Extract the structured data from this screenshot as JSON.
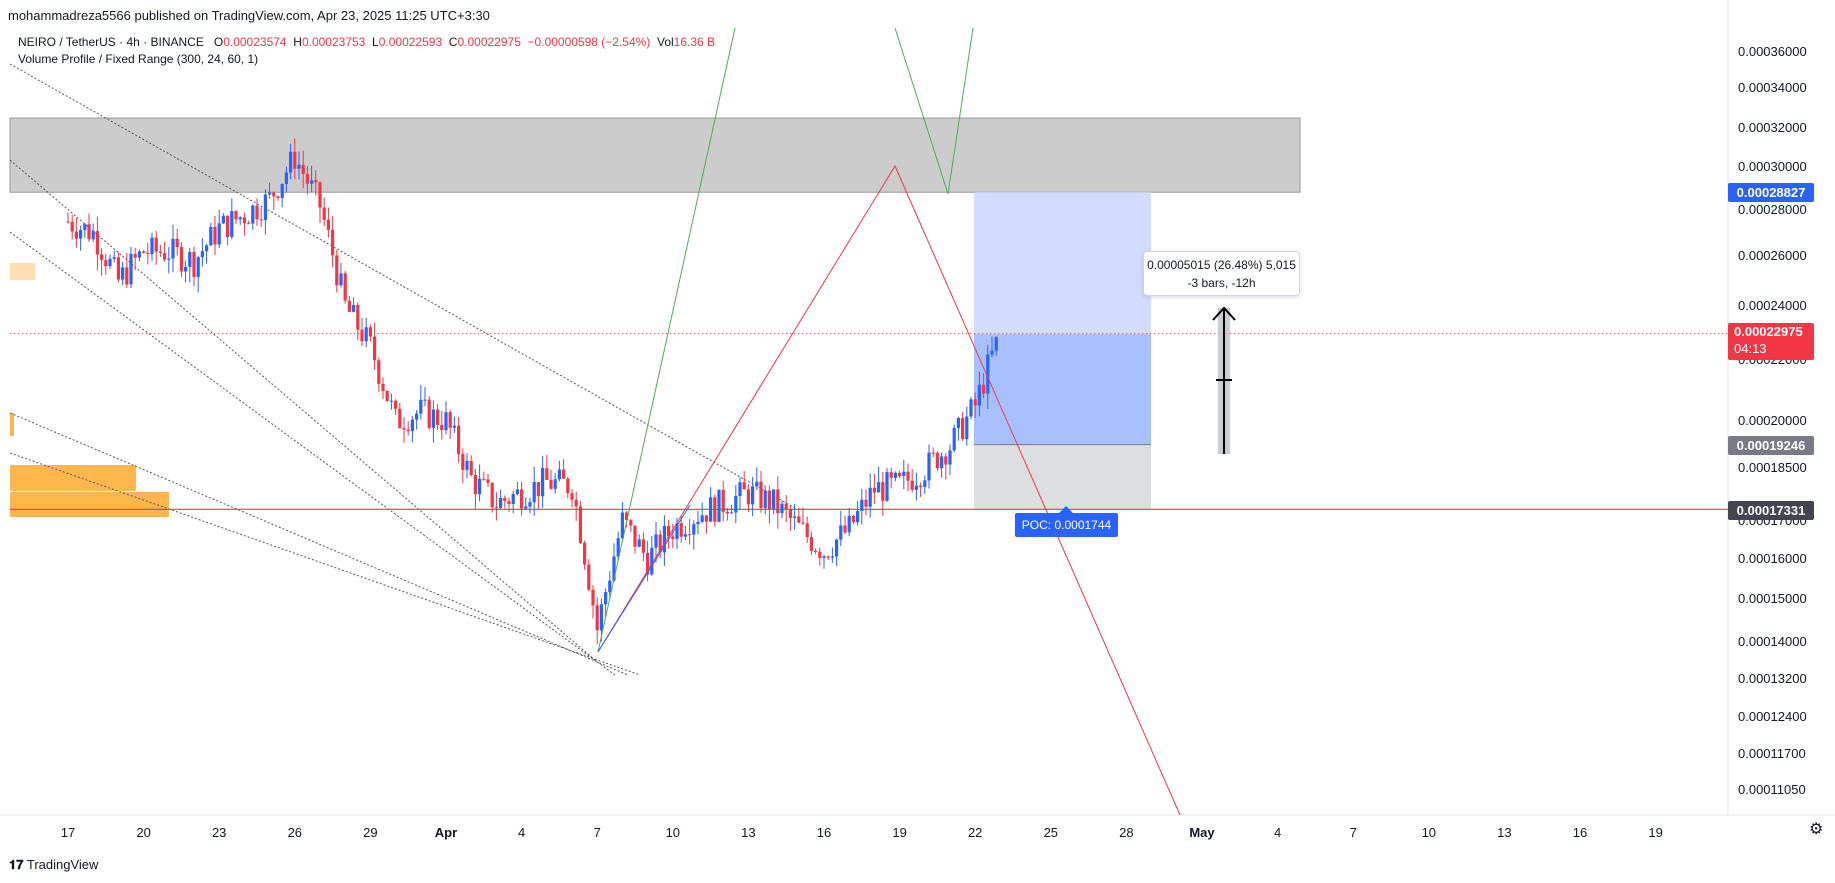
{
  "header": {
    "published": "mohammadreza5566 published on TradingView.com, Apr 23, 2025 11:25 UTC+3:30",
    "symbol": "NEIRO / TetherUS · 4h · BINANCE",
    "o_label": "O",
    "o": "0.00023574",
    "h_label": "H",
    "h": "0.00023753",
    "l_label": "L",
    "l": "0.00022593",
    "c_label": "C",
    "c": "0.00022975",
    "change": "−0.00000598 (−2.54%)",
    "vol_label": "Vol",
    "vol": "16.36 B",
    "indicator": "Volume Profile / Fixed Range (300, 24, 60, 1)"
  },
  "price_labels": {
    "target": "0.00028827",
    "current": "0.00022975",
    "countdown": "04:13",
    "entry": "0.00019246",
    "poc_line": "0.00017331"
  },
  "measure": {
    "line1": "0.00005015 (26.48%) 5,015",
    "line2": "-3 bars, -12h"
  },
  "poc_label": "POC: 0.0001744",
  "footer": {
    "logo_text": "TradingView"
  },
  "colors": {
    "up": "#2962ff",
    "down": "#f23645",
    "zone": "#cccccc",
    "orange": "#ffb74d",
    "green": "#4caf50"
  },
  "chart_data": {
    "type": "candlestick",
    "title": "NEIRO / TetherUS · 4h · BINANCE",
    "y_ticks": [
      "0.00036000",
      "0.00034000",
      "0.00032000",
      "0.00030000",
      "0.00028000",
      "0.00026000",
      "0.00024000",
      "0.00022000",
      "0.00020000",
      "0.00018500",
      "0.00017000",
      "0.00016000",
      "0.00015000",
      "0.00014000",
      "0.00013200",
      "0.00012400",
      "0.00011700",
      "0.00011050"
    ],
    "x_ticks": [
      "17",
      "20",
      "23",
      "26",
      "29",
      "Apr",
      "4",
      "7",
      "10",
      "13",
      "16",
      "19",
      "22",
      "25",
      "28",
      "May",
      "4",
      "7",
      "10",
      "13",
      "16",
      "19"
    ],
    "x_bold": [
      "Apr",
      "May"
    ],
    "ylim": [
      0.000105,
      0.00038
    ],
    "close_path": [
      [
        "17",
        0.000275
      ],
      [
        "18",
        0.00027
      ],
      [
        "19",
        0.00025
      ],
      [
        "20",
        0.000262
      ],
      [
        "21",
        0.000262
      ],
      [
        "22",
        0.000258
      ],
      [
        "23",
        0.000272
      ],
      [
        "24",
        0.000278
      ],
      [
        "25",
        0.000285
      ],
      [
        "26",
        0.000305
      ],
      [
        "27",
        0.000282
      ],
      [
        "28",
        0.00024
      ],
      [
        "29",
        0.000225
      ],
      [
        "30",
        0.0002
      ],
      [
        "31",
        0.000203
      ],
      [
        "Apr 1",
        0.0002
      ],
      [
        "Apr 2",
        0.000182
      ],
      [
        "Apr 3",
        0.000175
      ],
      [
        "Apr 4",
        0.000178
      ],
      [
        "Apr 5",
        0.000181
      ],
      [
        "Apr 6",
        0.00018
      ],
      [
        "Apr 7",
        0.000143
      ],
      [
        "Apr 8",
        0.00017
      ],
      [
        "Apr 9",
        0.00016
      ],
      [
        "Apr 10",
        0.000168
      ],
      [
        "Apr 11",
        0.000172
      ],
      [
        "Apr 12",
        0.000175
      ],
      [
        "Apr 13",
        0.000178
      ],
      [
        "Apr 14",
        0.000175
      ],
      [
        "Apr 15",
        0.000168
      ],
      [
        "Apr 16",
        0.000162
      ],
      [
        "Apr 17",
        0.000168
      ],
      [
        "Apr 18",
        0.000179
      ],
      [
        "Apr 19",
        0.00018
      ],
      [
        "Apr 20",
        0.000185
      ],
      [
        "Apr 21",
        0.000192
      ],
      [
        "Apr 22",
        0.000205
      ],
      [
        "Apr 23",
        0.00022975
      ]
    ],
    "zones": {
      "resistance": [
        0.00028827,
        0.000325
      ],
      "target_box": [
        0.00022975,
        0.00028827
      ],
      "profit_box": [
        0.00019246,
        0.00022975
      ],
      "stop_box": [
        0.00017331,
        0.00019246
      ]
    }
  }
}
